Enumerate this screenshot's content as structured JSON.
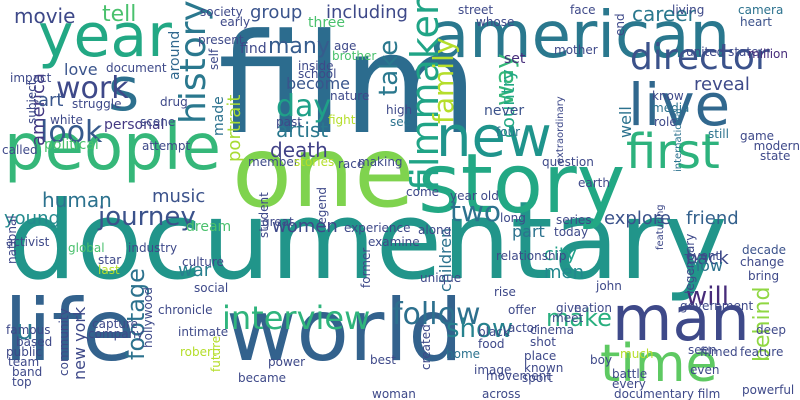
{
  "word_cloud": {
    "words": [
      {
        "text": "film",
        "color": "#2c6c8e"
      },
      {
        "text": "documentary",
        "color": "#21958a"
      },
      {
        "text": "one",
        "color": "#7fd34e"
      },
      {
        "text": "story",
        "color": "#22a884"
      },
      {
        "text": "american",
        "color": "#2a788e"
      },
      {
        "text": "people",
        "color": "#35b779"
      },
      {
        "text": "life",
        "color": "#33628d"
      },
      {
        "text": "world",
        "color": "#33628d"
      },
      {
        "text": "new",
        "color": "#1f948c"
      },
      {
        "text": "man",
        "color": "#3e4989"
      },
      {
        "text": "year",
        "color": "#22a884"
      },
      {
        "text": "live",
        "color": "#31688e"
      },
      {
        "text": "first",
        "color": "#2db27d"
      },
      {
        "text": "time",
        "color": "#5ec962"
      },
      {
        "text": "s",
        "color": "#2d708e"
      },
      {
        "text": "director",
        "color": "#3b528b"
      },
      {
        "text": "history",
        "color": "#2a788e"
      },
      {
        "text": "filmmaker",
        "color": "#20a486"
      },
      {
        "text": "interview",
        "color": "#2fb47c"
      },
      {
        "text": "follow",
        "color": "#2d708e"
      },
      {
        "text": "family",
        "color": "#b5de2b"
      },
      {
        "text": "journey",
        "color": "#3b528b"
      },
      {
        "text": "two",
        "color": "#2c728e"
      },
      {
        "text": "work",
        "color": "#3e4989"
      },
      {
        "text": "day",
        "color": "#1fa088"
      },
      {
        "text": "look",
        "color": "#375a8c"
      },
      {
        "text": "take",
        "color": "#2a788e"
      },
      {
        "text": "will",
        "color": "#472c7a"
      },
      {
        "text": "make",
        "color": "#29af7f"
      },
      {
        "text": "show",
        "color": "#26828e"
      },
      {
        "text": "way",
        "color": "#35b779"
      },
      {
        "text": "footage",
        "color": "#2c728e"
      },
      {
        "text": "behind",
        "color": "#90d743"
      },
      {
        "text": "u",
        "color": "#29798e"
      },
      {
        "text": "tell",
        "color": "#4ac16d"
      },
      {
        "text": "movie",
        "color": "#3e4989"
      },
      {
        "text": "many",
        "color": "#365c8d"
      },
      {
        "text": "america",
        "color": "#443983"
      },
      {
        "text": "artist",
        "color": "#2a788e"
      },
      {
        "text": "love",
        "color": "#3a548c"
      },
      {
        "text": "portrait",
        "color": "#a8db34"
      },
      {
        "text": "career",
        "color": "#2a788e"
      },
      {
        "text": "reveal",
        "color": "#3e4a89"
      },
      {
        "text": "death",
        "color": "#414287"
      },
      {
        "text": "music",
        "color": "#3b528b"
      },
      {
        "text": "human",
        "color": "#2c728e"
      },
      {
        "text": "young",
        "color": "#238a8d"
      },
      {
        "text": "country",
        "color": "#22a884"
      },
      {
        "text": "group",
        "color": "#3a548c"
      },
      {
        "text": "including",
        "color": "#3e4989"
      },
      {
        "text": "women",
        "color": "#3e4989"
      },
      {
        "text": "back",
        "color": "#3e4989"
      },
      {
        "text": "explore",
        "color": "#3b528b"
      },
      {
        "text": "friend",
        "color": "#34618d"
      },
      {
        "text": "new york",
        "color": "#3e4989"
      },
      {
        "text": "city",
        "color": "#1fa088"
      },
      {
        "text": "men",
        "color": "#23898e"
      },
      {
        "text": "part",
        "color": "#2c728e"
      },
      {
        "text": "children",
        "color": "#2c728e"
      },
      {
        "text": "war",
        "color": "#277f8e"
      },
      {
        "text": "become",
        "color": "#39558c"
      },
      {
        "text": "around",
        "color": "#31688e"
      },
      {
        "text": "made",
        "color": "#2c728e"
      },
      {
        "text": "art",
        "color": "#39558c"
      },
      {
        "text": "well",
        "color": "#2c728e"
      },
      {
        "text": "now",
        "color": "#2c728e"
      },
      {
        "text": "dream",
        "color": "#4ac16d"
      },
      {
        "text": "never",
        "color": "#3b528b"
      },
      {
        "text": "three",
        "color": "#4ac16d"
      },
      {
        "text": "political",
        "color": "#4ac16d"
      },
      {
        "text": "set",
        "color": "#472d7b"
      },
      {
        "text": "find",
        "color": "#3e4989"
      },
      {
        "text": "personal",
        "color": "#443983"
      },
      {
        "text": "street",
        "color": "#3e4989"
      },
      {
        "text": "heart",
        "color": "#3b528b"
      },
      {
        "text": "camera",
        "color": "#2c728e"
      },
      {
        "text": "living",
        "color": "#3e4989"
      },
      {
        "text": "game",
        "color": "#3e4989"
      },
      {
        "text": "still",
        "color": "#2c728e"
      },
      {
        "text": "state",
        "color": "#3e4989"
      },
      {
        "text": "modern",
        "color": "#3e4989"
      },
      {
        "text": "united state",
        "color": "#3e4989"
      },
      {
        "text": "million",
        "color": "#472d7b"
      },
      {
        "text": "role",
        "color": "#3e4989"
      },
      {
        "text": "know",
        "color": "#3e4989"
      },
      {
        "text": "media",
        "color": "#2c728e"
      },
      {
        "text": "international",
        "color": "#2c728e"
      },
      {
        "text": "four",
        "color": "#2c728e"
      },
      {
        "text": "extraordinary",
        "color": "#3e4989"
      },
      {
        "text": "question",
        "color": "#3e4989"
      },
      {
        "text": "movement",
        "color": "#3e4989"
      },
      {
        "text": "earth",
        "color": "#3e4989"
      },
      {
        "text": "decade",
        "color": "#3b528b"
      },
      {
        "text": "change",
        "color": "#3e4989"
      },
      {
        "text": "bring",
        "color": "#3e4989"
      },
      {
        "text": "event",
        "color": "#3e4989"
      },
      {
        "text": "featuring",
        "color": "#3e4989"
      },
      {
        "text": "legendary",
        "color": "#3e4989"
      },
      {
        "text": "government",
        "color": "#3e4989"
      },
      {
        "text": "deep",
        "color": "#3e4989"
      },
      {
        "text": "feature",
        "color": "#3e4989"
      },
      {
        "text": "filmed",
        "color": "#3e4989"
      },
      {
        "text": "seen",
        "color": "#3e4989"
      },
      {
        "text": "even",
        "color": "#3e4989"
      },
      {
        "text": "powerful",
        "color": "#3e4989"
      },
      {
        "text": "battle",
        "color": "#3e4989"
      },
      {
        "text": "every",
        "color": "#3e4989"
      },
      {
        "text": "much",
        "color": "#b5de2b"
      },
      {
        "text": "boy",
        "color": "#3e4989"
      },
      {
        "text": "documentary film",
        "color": "#3e4989"
      },
      {
        "text": "give",
        "color": "#3e4989"
      },
      {
        "text": "nation",
        "color": "#3e4989"
      },
      {
        "text": "place",
        "color": "#3e4989"
      },
      {
        "text": "known",
        "color": "#3e4989"
      },
      {
        "text": "sport",
        "color": "#3e4989"
      },
      {
        "text": "across",
        "color": "#3e4989"
      },
      {
        "text": "shot",
        "color": "#3e4989"
      },
      {
        "text": "cinema",
        "color": "#3e4989"
      },
      {
        "text": "meet",
        "color": "#3e4989"
      },
      {
        "text": "actor",
        "color": "#3e4989"
      },
      {
        "text": "offer",
        "color": "#3e4989"
      },
      {
        "text": "rise",
        "color": "#3e4989"
      },
      {
        "text": "relationship",
        "color": "#3e4989"
      },
      {
        "text": "series",
        "color": "#3e4989"
      },
      {
        "text": "today",
        "color": "#3e4989"
      },
      {
        "text": "long",
        "color": "#3e4989"
      },
      {
        "text": "john",
        "color": "#3e4989"
      },
      {
        "text": "unique",
        "color": "#3e4989"
      },
      {
        "text": "former",
        "color": "#3e4989"
      },
      {
        "text": "image",
        "color": "#3e4989"
      },
      {
        "text": "black",
        "color": "#3e4989"
      },
      {
        "text": "food",
        "color": "#3e4989"
      },
      {
        "text": "home",
        "color": "#2c728e"
      },
      {
        "text": "best",
        "color": "#3e4989"
      },
      {
        "text": "created",
        "color": "#3e4989"
      },
      {
        "text": "along",
        "color": "#3e4989"
      },
      {
        "text": "year old",
        "color": "#3e4989"
      },
      {
        "text": "come",
        "color": "#3e4989"
      },
      {
        "text": "experience",
        "color": "#3e4989"
      },
      {
        "text": "examine",
        "color": "#3e4989"
      },
      {
        "text": "great",
        "color": "#3e4989"
      },
      {
        "text": "student",
        "color": "#3e4989"
      },
      {
        "text": "legend",
        "color": "#3e4989"
      },
      {
        "text": "member",
        "color": "#3e4989"
      },
      {
        "text": "stories",
        "color": "#b5de2b"
      },
      {
        "text": "race",
        "color": "#3e4989"
      },
      {
        "text": "making",
        "color": "#3e4989"
      },
      {
        "text": "fight",
        "color": "#b5de2b"
      },
      {
        "text": "see",
        "color": "#2c728e"
      },
      {
        "text": "high",
        "color": "#3e4989"
      },
      {
        "text": "past",
        "color": "#3e4989"
      },
      {
        "text": "nature",
        "color": "#3e4989"
      },
      {
        "text": "school",
        "color": "#3e4989"
      },
      {
        "text": "inside",
        "color": "#3e4989"
      },
      {
        "text": "brother",
        "color": "#4ac16d"
      },
      {
        "text": "age",
        "color": "#3e4989"
      },
      {
        "text": "whose",
        "color": "#3e4989"
      },
      {
        "text": "face",
        "color": "#3e4989"
      },
      {
        "text": "mother",
        "color": "#3e4989"
      },
      {
        "text": "end",
        "color": "#3e4989"
      },
      {
        "text": "self",
        "color": "#3e4989"
      },
      {
        "text": "present",
        "color": "#3e4989"
      },
      {
        "text": "early",
        "color": "#3e4989"
      },
      {
        "text": "society",
        "color": "#3e4989"
      },
      {
        "text": "drug",
        "color": "#3e4989"
      },
      {
        "text": "attempt",
        "color": "#3e4989"
      },
      {
        "text": "scene",
        "color": "#3e4989"
      },
      {
        "text": "struggle",
        "color": "#3e4989"
      },
      {
        "text": "document",
        "color": "#3e4989"
      },
      {
        "text": "impact",
        "color": "#3e4989"
      },
      {
        "text": "subject",
        "color": "#3e4989"
      },
      {
        "text": "white",
        "color": "#3e4989"
      },
      {
        "text": "called",
        "color": "#3e4989"
      },
      {
        "text": "activist",
        "color": "#3e4989"
      },
      {
        "text": "global",
        "color": "#4ac16d"
      },
      {
        "text": "star",
        "color": "#3e4989"
      },
      {
        "text": "industry",
        "color": "#3e4989"
      },
      {
        "text": "culture",
        "color": "#3e4989"
      },
      {
        "text": "social",
        "color": "#3e4989"
      },
      {
        "text": "chronicle",
        "color": "#3e4989"
      },
      {
        "text": "hollywood",
        "color": "#3e4989"
      },
      {
        "text": "company",
        "color": "#3e4989"
      },
      {
        "text": "last",
        "color": "#b5de2b"
      },
      {
        "text": "national",
        "color": "#3e4989"
      },
      {
        "text": "famous",
        "color": "#3e4989"
      },
      {
        "text": "capture",
        "color": "#3e4989"
      },
      {
        "text": "based",
        "color": "#3e4989"
      },
      {
        "text": "public",
        "color": "#3e4989"
      },
      {
        "text": "team",
        "color": "#3e4989"
      },
      {
        "text": "band",
        "color": "#3e4989"
      },
      {
        "text": "top",
        "color": "#3e4989"
      },
      {
        "text": "community",
        "color": "#3e4989"
      },
      {
        "text": "intimate",
        "color": "#3e4989"
      },
      {
        "text": "robert",
        "color": "#b5de2b"
      },
      {
        "text": "future",
        "color": "#b5de2b"
      },
      {
        "text": "power",
        "color": "#3e4989"
      },
      {
        "text": "became",
        "color": "#3e4989"
      },
      {
        "text": "woman",
        "color": "#3e4989"
      }
    ]
  }
}
